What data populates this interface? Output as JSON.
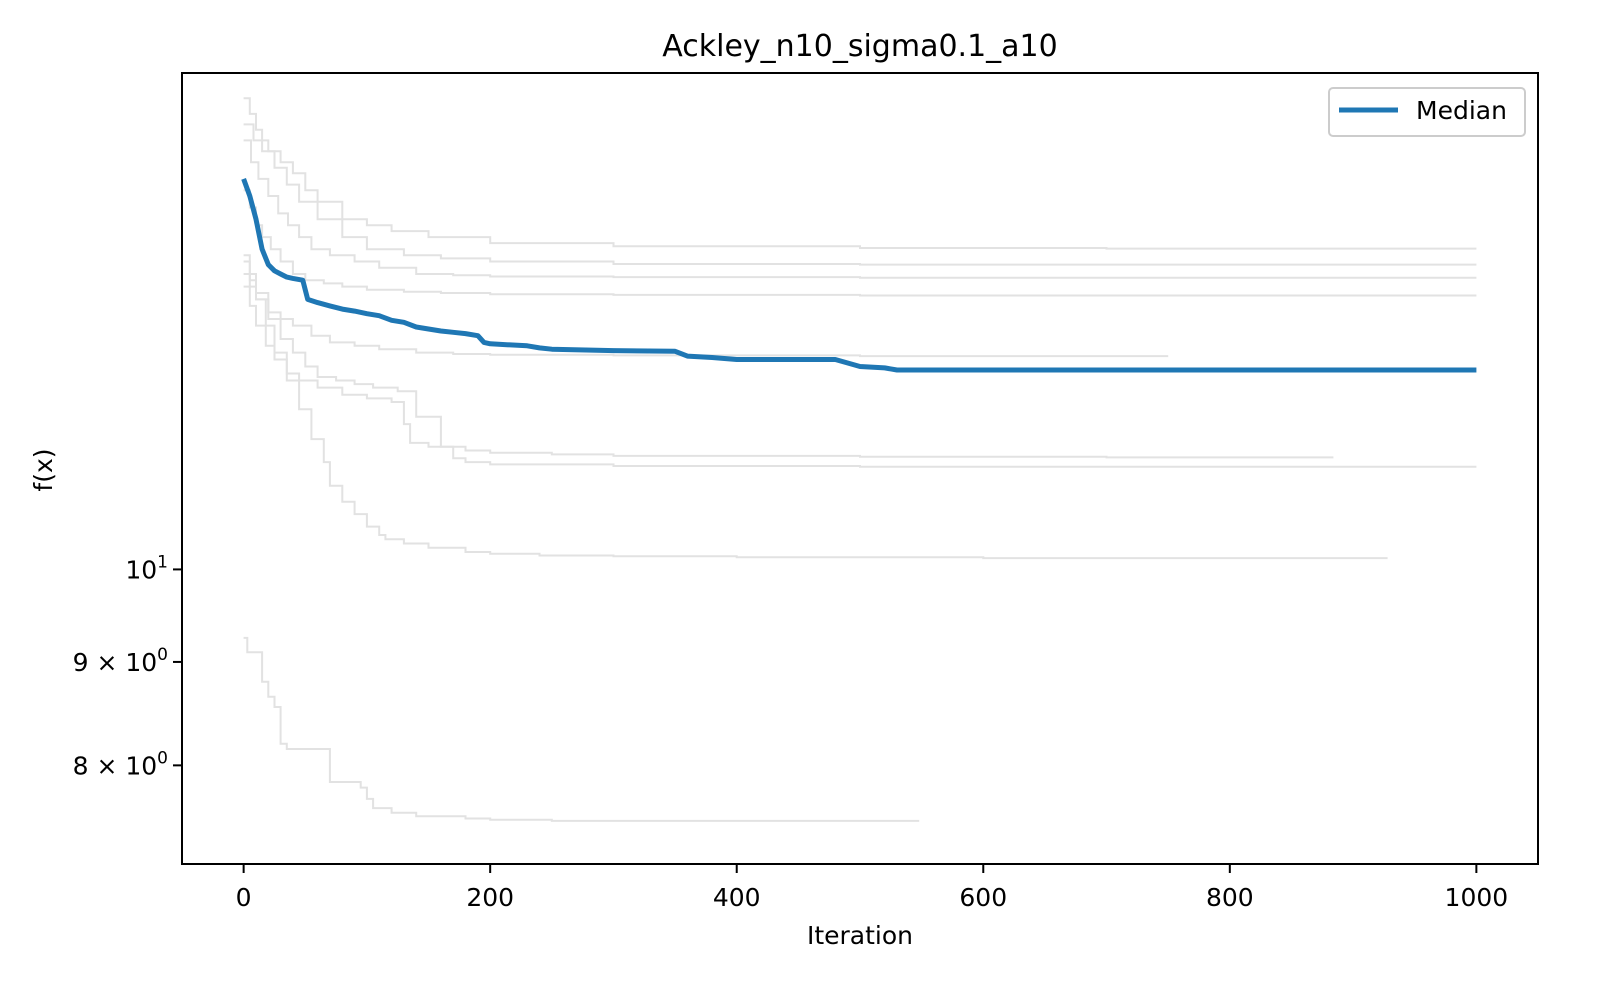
{
  "chart_data": {
    "type": "line",
    "title": "Ackley_n10_sigma0.1_a10",
    "xlabel": "Iteration",
    "ylabel": "f(x)",
    "yscale": "log",
    "xlim": [
      -50,
      1050
    ],
    "ylim": [
      7.15,
      17.6
    ],
    "xticks": [
      {
        "value": 0,
        "label": "0"
      },
      {
        "value": 200,
        "label": "200"
      },
      {
        "value": 400,
        "label": "400"
      },
      {
        "value": 600,
        "label": "600"
      },
      {
        "value": 800,
        "label": "800"
      },
      {
        "value": 1000,
        "label": "1000"
      }
    ],
    "yticks": [
      {
        "value": 8,
        "mantissa": "8",
        "cross": "×",
        "base": "10",
        "exp": "0"
      },
      {
        "value": 9,
        "mantissa": "9",
        "cross": "×",
        "base": "10",
        "exp": "0"
      },
      {
        "value": 10,
        "mantissa": "",
        "cross": "",
        "base": "10",
        "exp": "1"
      }
    ],
    "grid": false,
    "legend": {
      "position": "top-right",
      "entries": [
        {
          "label": "Median",
          "color": "#1f77b4"
        }
      ]
    },
    "median": {
      "name": "Median",
      "color": "#1f77b4",
      "x": [
        0,
        5,
        10,
        15,
        20,
        25,
        30,
        35,
        40,
        48,
        52,
        60,
        70,
        80,
        90,
        100,
        110,
        120,
        130,
        140,
        150,
        160,
        170,
        180,
        190,
        195,
        200,
        230,
        240,
        250,
        300,
        350,
        360,
        380,
        400,
        480,
        490,
        500,
        520,
        530,
        1000
      ],
      "y": [
        15.6,
        15.3,
        14.9,
        14.4,
        14.15,
        14.05,
        14.0,
        13.95,
        13.93,
        13.9,
        13.6,
        13.55,
        13.5,
        13.45,
        13.42,
        13.38,
        13.35,
        13.28,
        13.25,
        13.18,
        13.15,
        13.12,
        13.1,
        13.08,
        13.05,
        12.95,
        12.93,
        12.9,
        12.87,
        12.85,
        12.83,
        12.82,
        12.75,
        12.73,
        12.7,
        12.7,
        12.65,
        12.6,
        12.58,
        12.55,
        12.55
      ]
    },
    "runs": {
      "color": "#e2e2e2",
      "series": [
        {
          "x": [
            0,
            5,
            10,
            15,
            20,
            30,
            40,
            50,
            60,
            80,
            100,
            120,
            150,
            200,
            300,
            500,
            700,
            1000
          ],
          "y": [
            17.1,
            16.8,
            16.5,
            16.3,
            16.1,
            15.9,
            15.7,
            15.4,
            15.2,
            14.9,
            14.8,
            14.7,
            14.6,
            14.5,
            14.45,
            14.42,
            14.41,
            14.41
          ]
        },
        {
          "x": [
            0,
            8,
            15,
            25,
            35,
            45,
            60,
            80,
            100,
            130,
            160,
            200,
            300,
            500,
            800,
            1000
          ],
          "y": [
            16.6,
            16.3,
            16.1,
            15.8,
            15.5,
            15.2,
            14.9,
            14.6,
            14.4,
            14.3,
            14.25,
            14.2,
            14.16,
            14.15,
            14.15,
            14.15
          ]
        },
        {
          "x": [
            0,
            6,
            12,
            20,
            28,
            36,
            45,
            55,
            70,
            90,
            110,
            140,
            170,
            200,
            300,
            500,
            1000
          ],
          "y": [
            16.3,
            15.9,
            15.6,
            15.3,
            15.0,
            14.8,
            14.6,
            14.4,
            14.3,
            14.2,
            14.1,
            14.0,
            13.98,
            13.96,
            13.95,
            13.94,
            13.94
          ]
        },
        {
          "x": [
            0,
            5,
            10,
            15,
            22,
            30,
            40,
            50,
            65,
            80,
            100,
            130,
            160,
            200,
            300,
            500,
            1000
          ],
          "y": [
            15.4,
            15.1,
            14.8,
            14.6,
            14.4,
            14.2,
            14.0,
            13.9,
            13.85,
            13.8,
            13.75,
            13.72,
            13.7,
            13.68,
            13.67,
            13.66,
            13.66
          ]
        },
        {
          "x": [
            0,
            5,
            10,
            20,
            30,
            40,
            55,
            70,
            90,
            110,
            140,
            170,
            200,
            300,
            500,
            750
          ],
          "y": [
            14.0,
            13.8,
            13.6,
            13.4,
            13.3,
            13.2,
            13.05,
            12.95,
            12.9,
            12.85,
            12.8,
            12.78,
            12.77,
            12.76,
            12.75,
            12.75
          ]
        },
        {
          "x": [
            0,
            5,
            10,
            18,
            25,
            35,
            45,
            60,
            80,
            100,
            120,
            130,
            135,
            150,
            180,
            200,
            250,
            300,
            500,
            700,
            884
          ],
          "y": [
            13.8,
            13.5,
            13.2,
            12.9,
            12.7,
            12.5,
            12.4,
            12.3,
            12.2,
            12.15,
            12.1,
            11.8,
            11.55,
            11.5,
            11.45,
            11.42,
            11.4,
            11.38,
            11.37,
            11.36,
            11.36
          ]
        },
        {
          "x": [
            0,
            5,
            10,
            20,
            30,
            40,
            50,
            60,
            75,
            90,
            105,
            125,
            140,
            160,
            170,
            180,
            200,
            300,
            500,
            1000
          ],
          "y": [
            14.3,
            14.0,
            13.7,
            13.3,
            13.0,
            12.8,
            12.6,
            12.45,
            12.4,
            12.35,
            12.3,
            12.25,
            11.9,
            11.5,
            11.35,
            11.3,
            11.27,
            11.25,
            11.24,
            11.24
          ]
        },
        {
          "x": [
            0,
            5,
            10,
            18,
            25,
            35,
            45,
            55,
            65,
            70,
            80,
            90,
            100,
            110,
            115,
            130,
            150,
            180,
            200,
            240,
            300,
            400,
            600,
            800,
            928
          ],
          "y": [
            14.2,
            13.9,
            13.6,
            13.2,
            12.8,
            12.4,
            12.0,
            11.6,
            11.3,
            11.0,
            10.8,
            10.65,
            10.5,
            10.4,
            10.35,
            10.3,
            10.25,
            10.2,
            10.18,
            10.16,
            10.15,
            10.14,
            10.13,
            10.13,
            10.13
          ]
        },
        {
          "x": [
            0,
            3,
            8,
            15,
            20,
            25,
            30,
            35,
            50,
            65,
            70,
            90,
            95,
            100,
            105,
            120,
            140,
            180,
            200,
            250,
            300,
            400,
            548
          ],
          "y": [
            9.25,
            9.1,
            9.1,
            8.8,
            8.65,
            8.55,
            8.2,
            8.15,
            8.15,
            8.15,
            7.85,
            7.85,
            7.8,
            7.7,
            7.62,
            7.58,
            7.55,
            7.53,
            7.52,
            7.51,
            7.51,
            7.51,
            7.51
          ]
        }
      ]
    }
  }
}
